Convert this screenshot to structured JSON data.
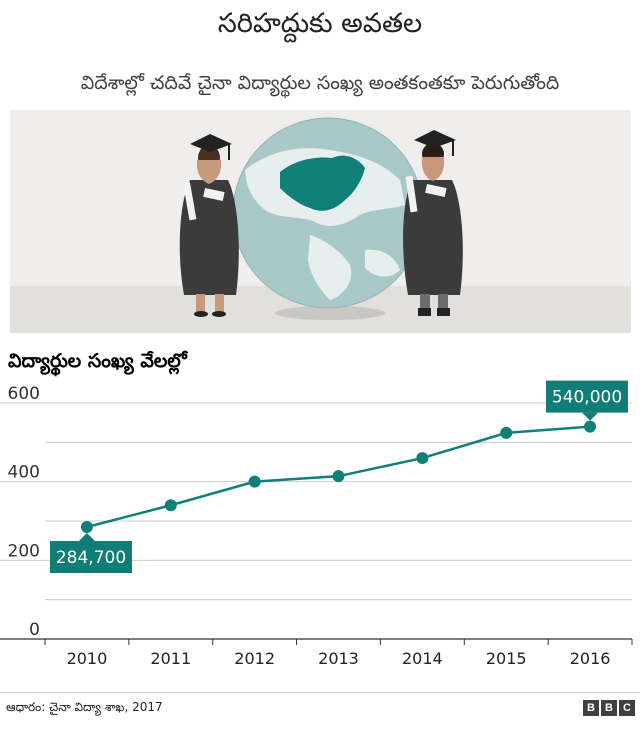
{
  "title": "సరిహద్దుకు అవతల",
  "subtitle": "విదేశాల్లో చదివే చైనా విద్యార్థుల సంఖ్య అంతకంతకూ పెరుగుతోంది",
  "colors": {
    "line": "#107f78",
    "marker": "#107f78",
    "callout_bg": "#117d77",
    "grid": "#cccccc",
    "map": "#107f78",
    "globe": "#a9c9c8"
  },
  "chart_data": {
    "type": "line",
    "ylabel": "విద్యార్థుల సంఖ్య వేలల్లో",
    "x": [
      "2010",
      "2011",
      "2012",
      "2013",
      "2014",
      "2015",
      "2016"
    ],
    "values": [
      284.7,
      340,
      400,
      414,
      460,
      524,
      540
    ],
    "ylim": [
      0,
      600
    ],
    "yticks": [
      "0",
      "200",
      "400",
      "600"
    ],
    "grid": true,
    "annotations": [
      {
        "x": "2010",
        "text": "284,700"
      },
      {
        "x": "2016",
        "text": "540,000"
      }
    ]
  },
  "source": "ఆధారం: చైనా విద్యా శాఖ, 2017",
  "logo_letters": [
    "B",
    "B",
    "C"
  ]
}
